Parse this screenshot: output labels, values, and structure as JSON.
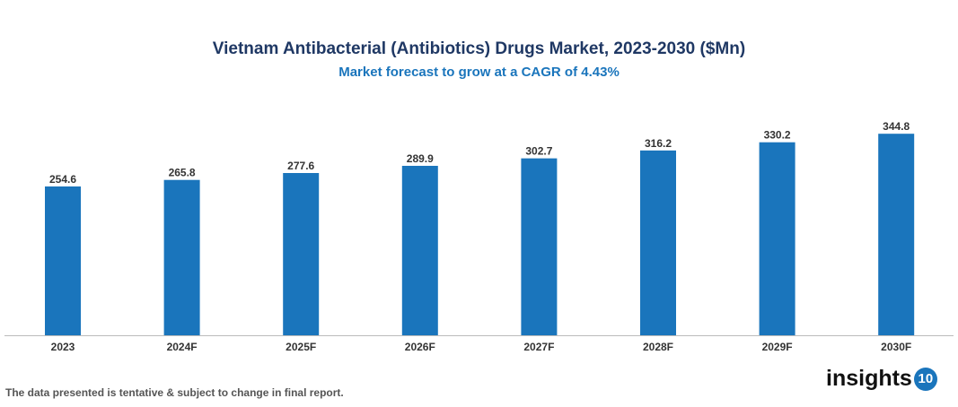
{
  "chart_data": {
    "type": "bar",
    "title": "Vietnam Antibacterial (Antibiotics) Drugs Market, 2023-2030 ($Mn)",
    "subtitle": "Market forecast to grow at a CAGR of 4.43%",
    "categories": [
      "2023",
      "2024F",
      "2025F",
      "2026F",
      "2027F",
      "2028F",
      "2029F",
      "2030F"
    ],
    "values": [
      254.6,
      265.8,
      277.6,
      289.9,
      302.7,
      316.2,
      330.2,
      344.8
    ],
    "xlabel": "",
    "ylabel": "",
    "ylim": [
      0,
      375
    ],
    "grid": false,
    "bar_color": "#1a75bc"
  },
  "footer": {
    "note": "The data presented is tentative & subject to change in final report.",
    "logo_text": "insights",
    "logo_number": "10"
  }
}
